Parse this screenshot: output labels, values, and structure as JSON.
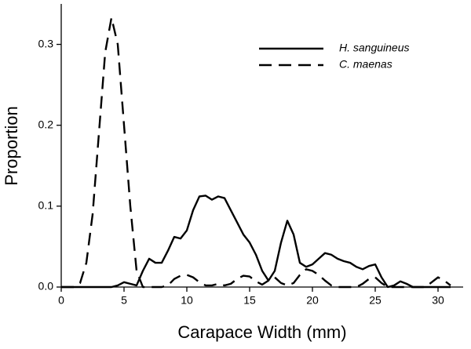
{
  "chart_data": {
    "type": "line",
    "xlabel": "Carapace Width (mm)",
    "ylabel": "Proportion",
    "x": [
      0,
      0.5,
      1,
      1.5,
      2,
      2.5,
      3,
      3.5,
      4,
      4.5,
      5,
      5.5,
      6,
      6.5,
      7,
      7.5,
      8,
      8.5,
      9,
      9.5,
      10,
      10.5,
      11,
      11.5,
      12,
      12.5,
      13,
      13.5,
      14,
      14.5,
      15,
      15.5,
      16,
      16.5,
      17,
      17.5,
      18,
      18.5,
      19,
      19.5,
      20,
      20.5,
      21,
      21.5,
      22,
      22.5,
      23,
      23.5,
      24,
      24.5,
      25,
      25.5,
      26,
      26.5,
      27,
      27.5,
      28,
      28.5,
      29,
      29.5,
      30,
      30.5,
      31
    ],
    "series": [
      {
        "name": "H. sanguineus",
        "color": "#000000",
        "style": "solid",
        "values": [
          0,
          0,
          0,
          0,
          0,
          0,
          0,
          0,
          0,
          0.002,
          0.006,
          0.004,
          0.002,
          0.02,
          0.035,
          0.03,
          0.03,
          0.045,
          0.062,
          0.06,
          0.07,
          0.095,
          0.112,
          0.113,
          0.108,
          0.112,
          0.11,
          0.095,
          0.08,
          0.065,
          0.055,
          0.04,
          0.02,
          0.008,
          0.02,
          0.055,
          0.082,
          0.065,
          0.03,
          0.025,
          0.028,
          0.035,
          0.042,
          0.04,
          0.035,
          0.032,
          0.03,
          0.025,
          0.022,
          0.026,
          0.028,
          0.012,
          0,
          0.002,
          0.007,
          0.004,
          0,
          0,
          0,
          0,
          0,
          0,
          0
        ]
      },
      {
        "name": "C. maenas",
        "color": "#000000",
        "style": "dashed",
        "values": [
          0,
          0,
          0,
          0.005,
          0.03,
          0.09,
          0.19,
          0.29,
          0.333,
          0.3,
          0.2,
          0.1,
          0.02,
          0,
          0,
          0,
          0,
          0.002,
          0.01,
          0.014,
          0.015,
          0.012,
          0.006,
          0.002,
          0.002,
          0.004,
          0.002,
          0.004,
          0.01,
          0.014,
          0.013,
          0.007,
          0.003,
          0.008,
          0.012,
          0.005,
          0.002,
          0.005,
          0.015,
          0.022,
          0.02,
          0.015,
          0.008,
          0.002,
          0,
          0,
          0,
          0,
          0.004,
          0.01,
          0.012,
          0.005,
          0,
          0,
          0,
          0,
          0,
          0,
          0,
          0.006,
          0.012,
          0.008,
          0.002
        ]
      }
    ],
    "xlim": [
      0,
      32
    ],
    "xticks": [
      0,
      5,
      10,
      15,
      20,
      25,
      30
    ],
    "ylim": [
      0,
      0.35
    ],
    "yticks": [
      {
        "value": 0,
        "label": "0.0"
      },
      0.1,
      0.2,
      0.3
    ],
    "legend": "upper right"
  }
}
